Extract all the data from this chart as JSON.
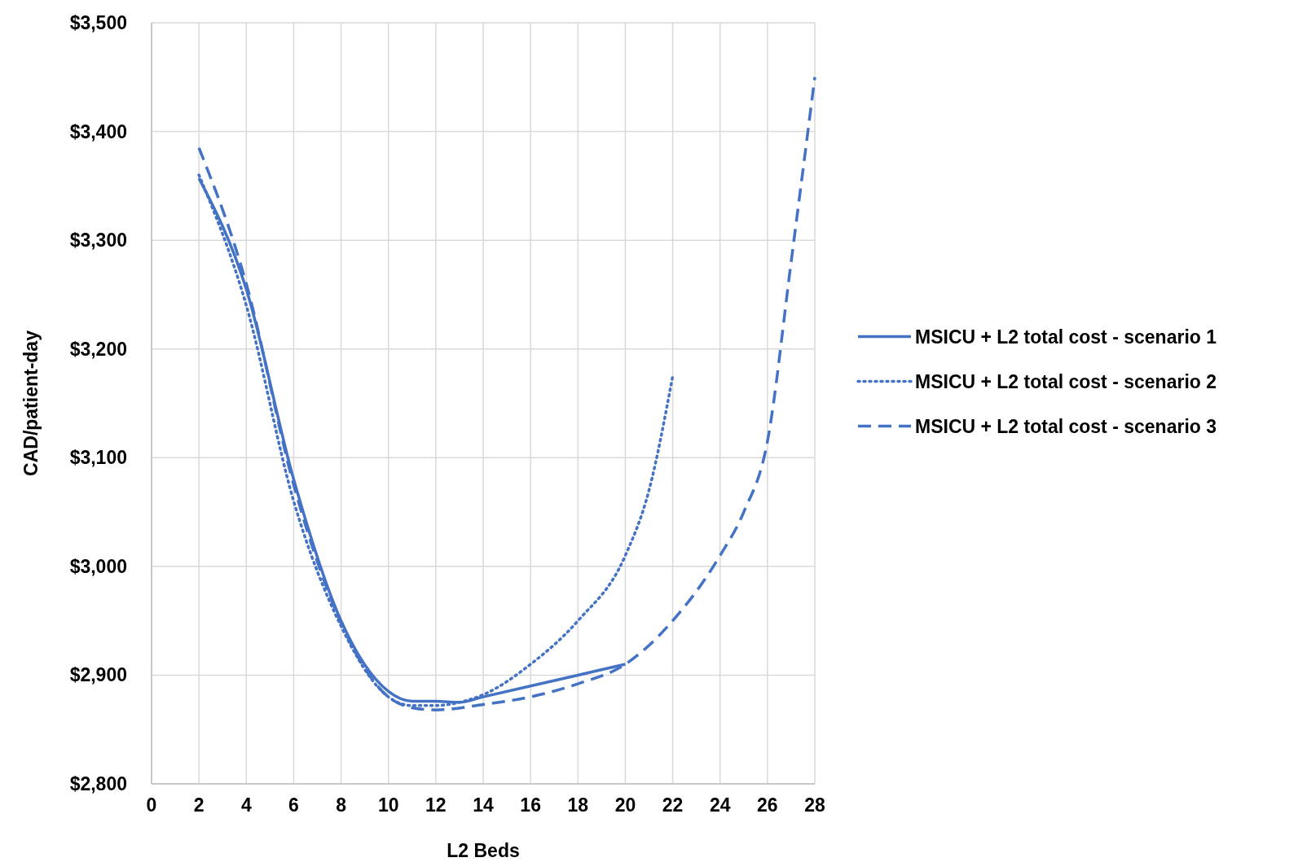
{
  "chart_data": {
    "type": "line",
    "xlabel": "L2 Beds",
    "ylabel": "CAD/patient-day",
    "xlim": [
      0,
      28
    ],
    "xticks": [
      0,
      2,
      4,
      6,
      8,
      10,
      12,
      14,
      16,
      18,
      20,
      22,
      24,
      26,
      28
    ],
    "ylim": [
      2800,
      3500
    ],
    "yticks": [
      {
        "value": 2800,
        "label": "$2,800"
      },
      {
        "value": 2900,
        "label": "$2,900"
      },
      {
        "value": 3000,
        "label": "$3,000"
      },
      {
        "value": 3100,
        "label": "$3,100"
      },
      {
        "value": 3200,
        "label": "$3,200"
      },
      {
        "value": 3300,
        "label": "$3,300"
      },
      {
        "value": 3400,
        "label": "$3,400"
      },
      {
        "value": 3500,
        "label": "$3,500"
      }
    ],
    "grid": true,
    "legend": "right",
    "marker": "none",
    "series": [
      {
        "name": "MSICU + L2 total cost - scenario 1",
        "color": "#4472c4",
        "line_style": "solid",
        "x": [
          2,
          4,
          6,
          8,
          10,
          11,
          12,
          13,
          14,
          16,
          18,
          20
        ],
        "values": [
          3357,
          3255,
          3080,
          2950,
          2885,
          2876,
          2876,
          2875,
          2880,
          2890,
          2900,
          2910
        ]
      },
      {
        "name": "MSICU + L2 total cost - scenario 2",
        "color": "#4472c4",
        "line_style": "dotted",
        "x": [
          2,
          4,
          6,
          8,
          10,
          11,
          12,
          13,
          14,
          16,
          18,
          20,
          21,
          22
        ],
        "values": [
          3360,
          3240,
          3060,
          2945,
          2880,
          2872,
          2872,
          2875,
          2882,
          2910,
          2950,
          3010,
          3070,
          3175
        ]
      },
      {
        "name": "MSICU + L2 total cost - scenario 3",
        "color": "#4472c4",
        "line_style": "dashed",
        "x": [
          2,
          4,
          6,
          8,
          10,
          11,
          12,
          14,
          16,
          18,
          20,
          22,
          24,
          25,
          26,
          27,
          28
        ],
        "values": [
          3385,
          3260,
          3075,
          2948,
          2880,
          2870,
          2868,
          2873,
          2880,
          2892,
          2910,
          2950,
          3010,
          3050,
          3115,
          3280,
          3450
        ]
      }
    ]
  }
}
